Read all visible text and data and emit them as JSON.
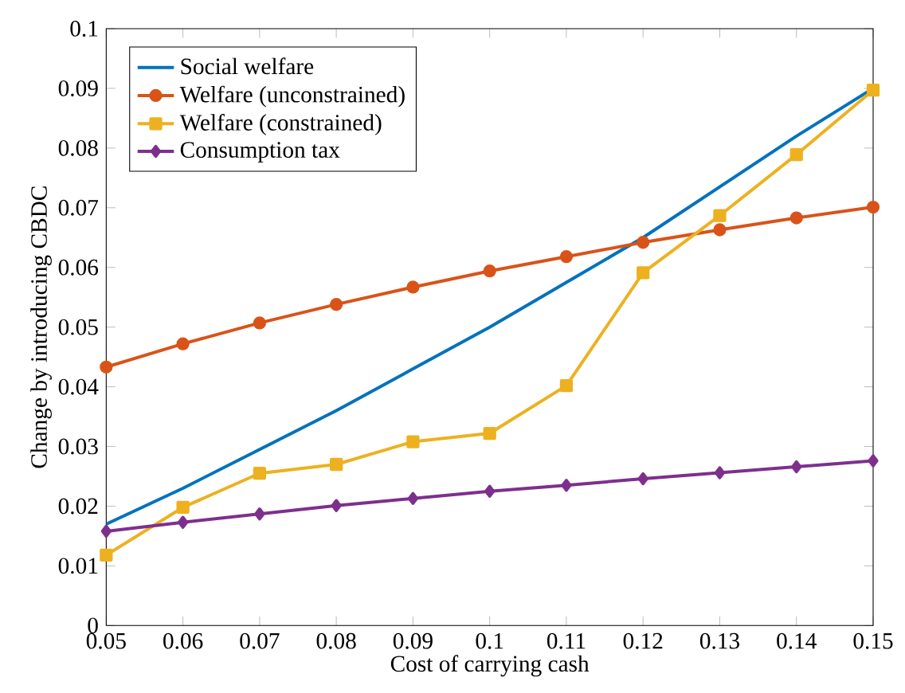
{
  "chart_data": {
    "type": "line",
    "xlabel": "Cost of carrying cash",
    "ylabel": "Change by introducing CBDC",
    "x": [
      0.05,
      0.06,
      0.07,
      0.08,
      0.09,
      0.1,
      0.11,
      0.12,
      0.13,
      0.14,
      0.15
    ],
    "series": [
      {
        "name": "Social welfare",
        "color": "#0072bd",
        "marker": "none",
        "values": [
          0.017,
          0.023,
          0.0295,
          0.036,
          0.043,
          0.05,
          0.0575,
          0.065,
          0.0735,
          0.082,
          0.09
        ]
      },
      {
        "name": "Welfare (unconstrained)",
        "color": "#d95319",
        "marker": "circle",
        "values": [
          0.0433,
          0.0472,
          0.0507,
          0.0538,
          0.0567,
          0.0594,
          0.0618,
          0.0642,
          0.0663,
          0.0683,
          0.0701
        ]
      },
      {
        "name": "Welfare (constrained)",
        "color": "#edb120",
        "marker": "square",
        "values": [
          0.0118,
          0.0198,
          0.0255,
          0.027,
          0.0308,
          0.0322,
          0.0402,
          0.0591,
          0.0687,
          0.0789,
          0.0897
        ]
      },
      {
        "name": "Consumption tax",
        "color": "#7e2f8e",
        "marker": "diamond",
        "values": [
          0.0158,
          0.0173,
          0.0187,
          0.0201,
          0.0213,
          0.0225,
          0.0235,
          0.0246,
          0.0256,
          0.0266,
          0.0276
        ]
      }
    ],
    "xlim": [
      0.05,
      0.15
    ],
    "xticks": [
      0.05,
      0.06,
      0.07,
      0.08,
      0.09,
      0.1,
      0.11,
      0.12,
      0.13,
      0.14,
      0.15
    ],
    "ylim": [
      0,
      0.1
    ],
    "yticks": [
      0,
      0.01,
      0.02,
      0.03,
      0.04,
      0.05,
      0.06,
      0.07,
      0.08,
      0.09,
      0.1
    ],
    "legend": "top left",
    "grid": false,
    "line_style": "solid"
  }
}
